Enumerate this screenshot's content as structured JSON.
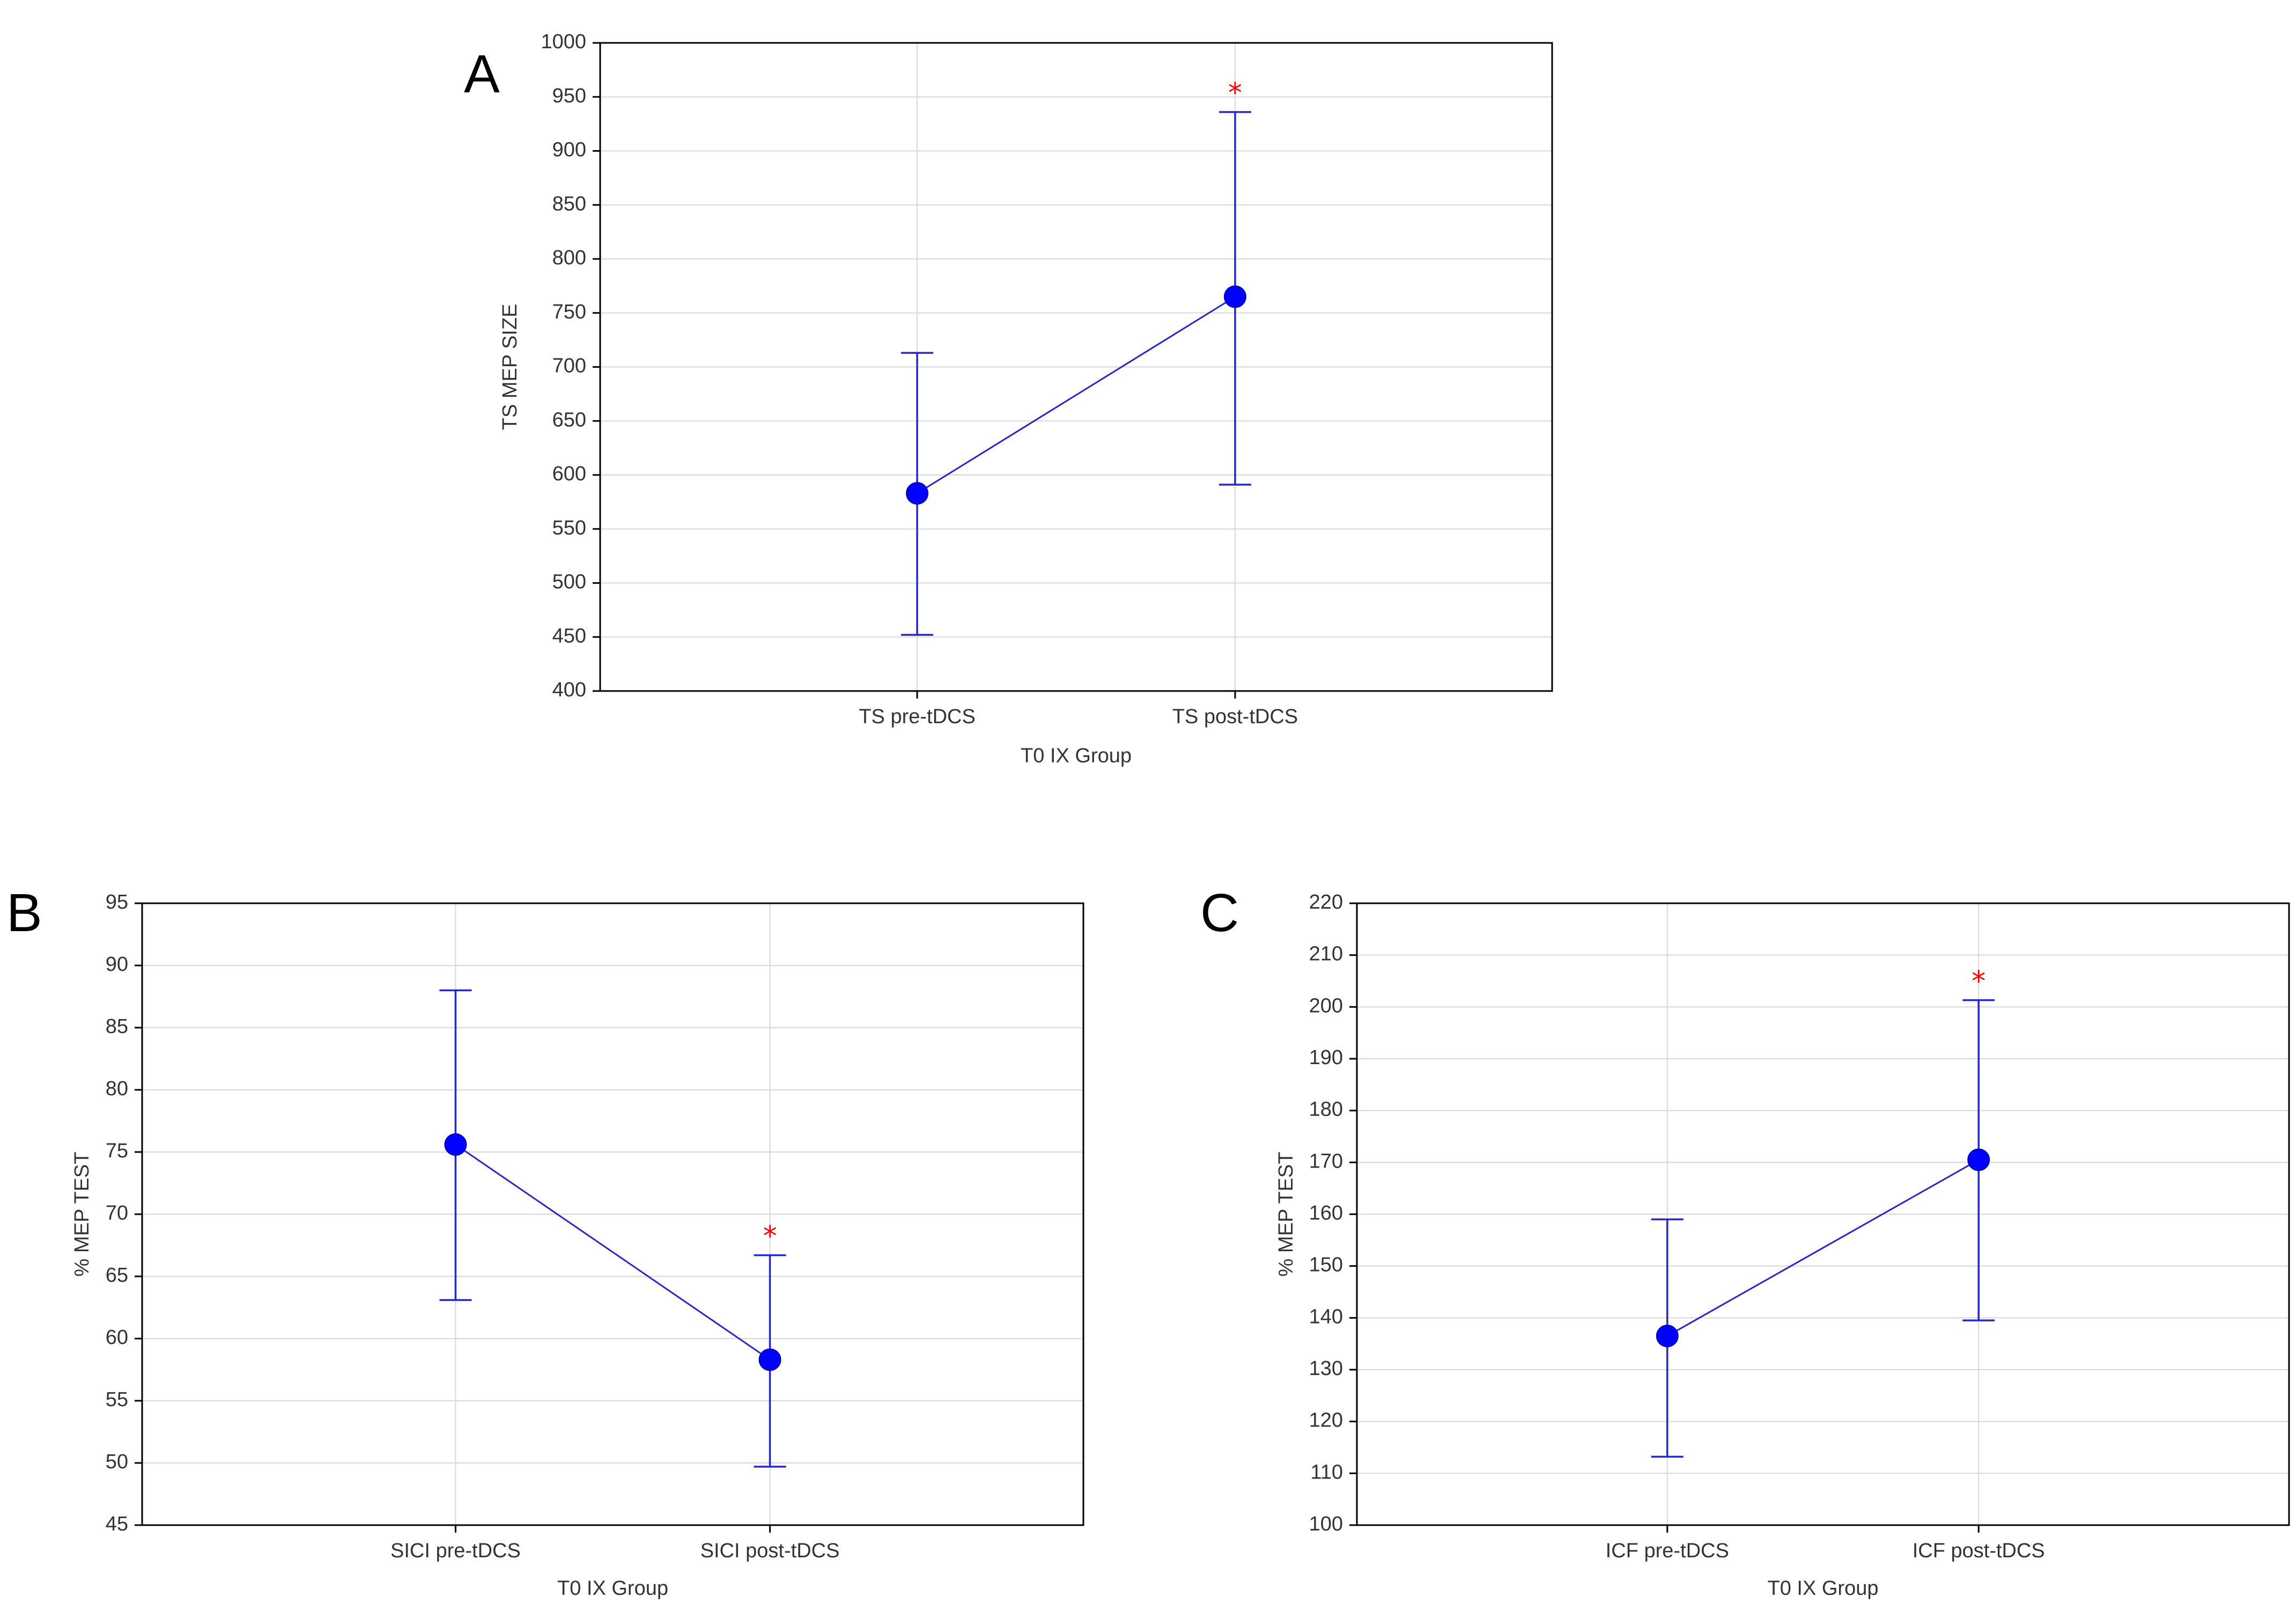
{
  "chart_data": [
    {
      "panel": "A",
      "type": "line",
      "title": "",
      "xlabel": "T0 IX Group",
      "ylabel": "TS MEP SIZE",
      "categories": [
        "TS pre-tDCS",
        "TS post-tDCS"
      ],
      "values": [
        583,
        765
      ],
      "error_low": [
        452,
        591
      ],
      "error_high": [
        713,
        936
      ],
      "significance": [
        "",
        "*"
      ],
      "ylim": [
        400,
        1000
      ],
      "yticks": [
        "400",
        "450",
        "500",
        "550",
        "600",
        "650",
        "700",
        "750",
        "800",
        "850",
        "900",
        "950",
        "1000"
      ],
      "grid": true
    },
    {
      "panel": "B",
      "type": "line",
      "title": "",
      "xlabel": "T0 IX Group",
      "ylabel": "% MEP TEST",
      "categories": [
        "SICI pre-tDCS",
        "SICI post-tDCS"
      ],
      "values": [
        75.6,
        58.3
      ],
      "error_low": [
        63.1,
        49.7
      ],
      "error_high": [
        88.0,
        66.7
      ],
      "significance": [
        "",
        "*"
      ],
      "ylim": [
        45,
        95
      ],
      "yticks": [
        "45",
        "50",
        "55",
        "60",
        "65",
        "70",
        "75",
        "80",
        "85",
        "90",
        "95"
      ],
      "grid": true
    },
    {
      "panel": "C",
      "type": "line",
      "title": "",
      "xlabel": "T0 IX Group",
      "ylabel": "% MEP TEST",
      "categories": [
        "ICF pre-tDCS",
        "ICF post-tDCS"
      ],
      "values": [
        136.5,
        170.5
      ],
      "error_low": [
        113.2,
        139.5
      ],
      "error_high": [
        159.0,
        201.3
      ],
      "significance": [
        "",
        "*"
      ],
      "ylim": [
        100,
        220
      ],
      "yticks": [
        "100",
        "110",
        "120",
        "130",
        "140",
        "150",
        "160",
        "170",
        "180",
        "190",
        "200",
        "210",
        "220"
      ],
      "grid": true
    }
  ],
  "colors": {
    "series": "#2828c8",
    "marker": "#0000ff",
    "significance": "#ff0000",
    "grid": "#d8d8d8"
  }
}
